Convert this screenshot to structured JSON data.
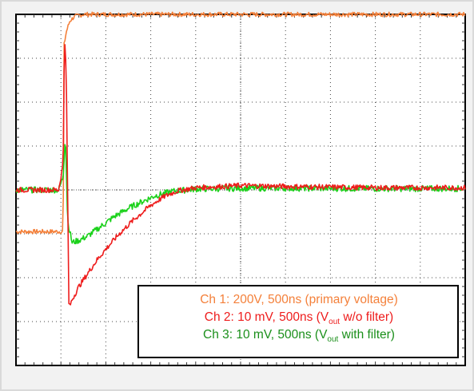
{
  "chart_data": {
    "type": "line",
    "title": "",
    "xlabel": "",
    "ylabel": "",
    "grid": true,
    "grid_divisions": {
      "x": 10,
      "y": 8
    },
    "xlim": [
      0,
      5000
    ],
    "x_units": "ns",
    "legend_placement": "bottom-right",
    "series": [
      {
        "name": "Ch 1: 200V, 500ns (primary voltage)",
        "channel": "Ch 1",
        "scale": "200V",
        "timebase": "500ns",
        "description": "primary voltage",
        "color": "#f4803a",
        "x_div": [
          0,
          0.9,
          1.05,
          1.07,
          1.12,
          1.2,
          1.3,
          1.5,
          2,
          4,
          6,
          8,
          10
        ],
        "y_div": [
          -0.95,
          -0.95,
          -0.95,
          3.3,
          3.6,
          3.85,
          3.95,
          4.0,
          4.0,
          4.0,
          4.0,
          4.0,
          4.0
        ]
      },
      {
        "name": "Ch 2: 10 mV, 500ns (Vout w/o filter)",
        "channel": "Ch 2",
        "scale": "10 mV",
        "timebase": "500ns",
        "description": "Vout w/o filter",
        "color": "#ee1c1c",
        "x_div": [
          0,
          0.95,
          1.05,
          1.08,
          1.12,
          1.18,
          1.25,
          1.4,
          1.6,
          1.8,
          2.0,
          2.3,
          2.6,
          3.0,
          3.3,
          3.6,
          4.0,
          5.0,
          6.0,
          8.0,
          10.0
        ],
        "y_div": [
          0,
          0,
          0.6,
          3.6,
          2.6,
          -2.7,
          -2.5,
          -2.2,
          -1.9,
          -1.6,
          -1.35,
          -1.0,
          -0.7,
          -0.35,
          -0.15,
          -0.02,
          0.05,
          0.1,
          0.08,
          0.05,
          0.05
        ]
      },
      {
        "name": "Ch 3: 10 mV, 500ns (Vout with filter)",
        "channel": "Ch 3",
        "scale": "10 mV",
        "timebase": "500ns",
        "description": "Vout with filter",
        "color": "#1ad11a",
        "x_div": [
          0,
          0.95,
          1.05,
          1.1,
          1.15,
          1.25,
          1.4,
          1.6,
          1.8,
          2.0,
          2.2,
          2.5,
          2.8,
          3.1,
          3.5,
          4.0,
          5.0,
          6.0,
          8.0,
          10.0
        ],
        "y_div": [
          0,
          0,
          0.3,
          1.3,
          -0.7,
          -1.2,
          -1.15,
          -1.05,
          -0.9,
          -0.75,
          -0.6,
          -0.42,
          -0.27,
          -0.13,
          -0.03,
          0.02,
          0.04,
          0.04,
          0.03,
          0.03
        ]
      }
    ]
  },
  "legend": {
    "ch1_text": "Ch 1: 200V, 500ns (primary voltage)",
    "ch2_prefix": "Ch 2: 10 mV, 500ns (V",
    "ch2_sub": "out",
    "ch2_suffix": " w/o filter)",
    "ch3_prefix": "Ch 3: 10 mV, 500ns (V",
    "ch3_sub": "out",
    "ch3_suffix": " with filter)"
  }
}
